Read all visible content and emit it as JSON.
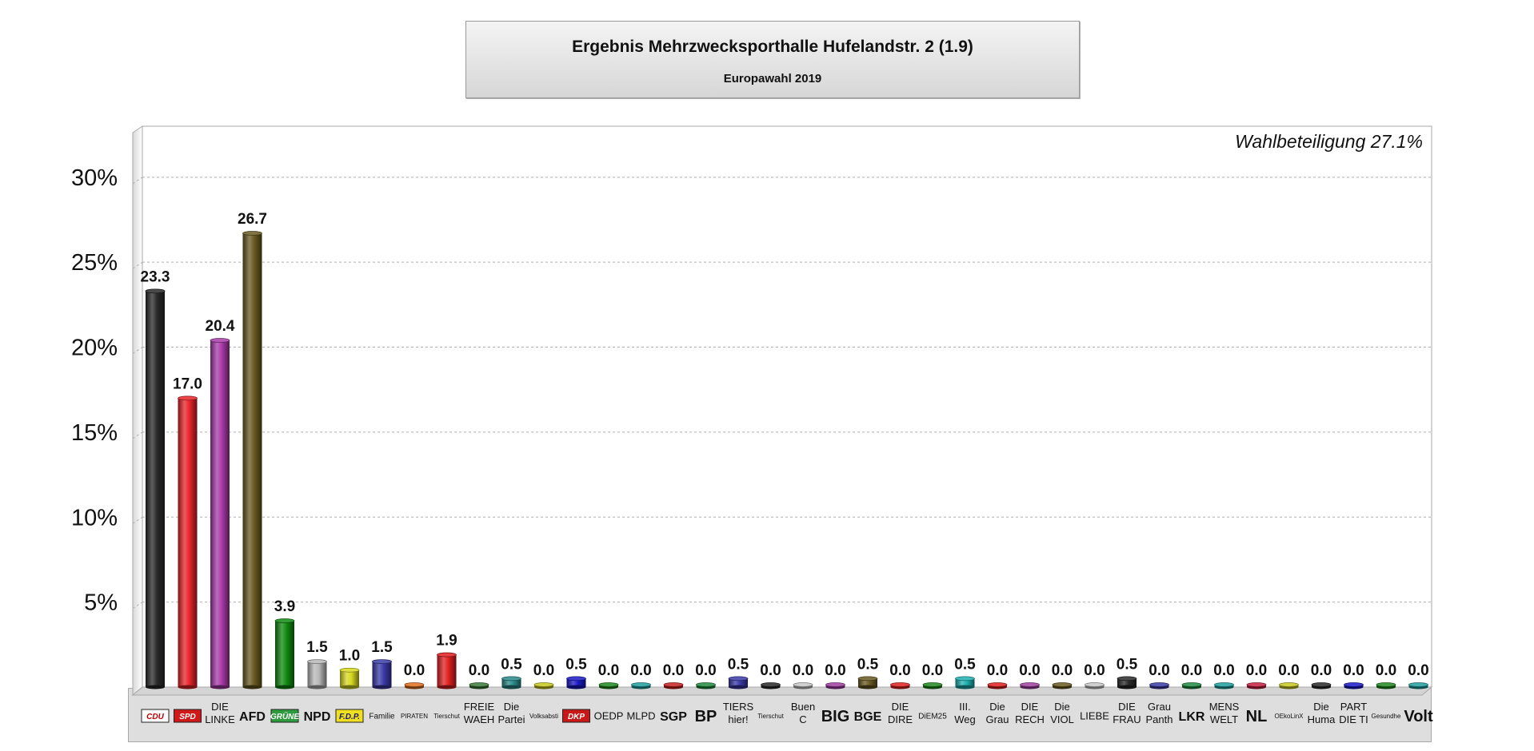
{
  "header": {
    "title": "Ergebnis Mehrzwecksporthalle Hufelandstr. 2 (1.9)",
    "subtitle": "Europawahl 2019"
  },
  "chart_data": {
    "type": "bar",
    "title": "Ergebnis Mehrzwecksporthalle Hufelandstr. 2 (1.9)",
    "subtitle": "Europawahl 2019",
    "annotation": "Wahlbeteiligung 27.1%",
    "ylim": [
      0,
      33
    ],
    "yticks": [
      "5%",
      "10%",
      "15%",
      "20%",
      "25%",
      "30%"
    ],
    "ytick_values": [
      5,
      10,
      15,
      20,
      25,
      30
    ],
    "grid": true,
    "categories": [
      {
        "label": "CDU",
        "value": 23.3,
        "value_label": "23.3",
        "color": "#2a2a2a",
        "style": "logo",
        "logo_bg": "#ffffff",
        "logo_fg": "#c00000"
      },
      {
        "label": "SPD",
        "value": 17.0,
        "value_label": "17.0",
        "color": "#e8242a",
        "style": "logo",
        "logo_bg": "#d01818",
        "logo_fg": "#ffffff"
      },
      {
        "label": "DIE LINKE",
        "value": 20.4,
        "value_label": "20.4",
        "color": "#a83aa8",
        "style": "small"
      },
      {
        "label": "AFD",
        "value": 26.7,
        "value_label": "26.7",
        "color": "#6a5a22",
        "style": "big"
      },
      {
        "label": "GRÜNE",
        "value": 3.9,
        "value_label": "3.9",
        "color": "#108a10",
        "style": "logo",
        "logo_bg": "#2e9a3e",
        "logo_fg": "#ffffff"
      },
      {
        "label": "NPD",
        "value": 1.5,
        "value_label": "1.5",
        "color": "#b8b8b8",
        "style": "big"
      },
      {
        "label": "F.D.P.",
        "value": 1.0,
        "value_label": "1.0",
        "color": "#d8d820",
        "style": "logo",
        "logo_bg": "#f0e020",
        "logo_fg": "#1a1a6a"
      },
      {
        "label": "Familie",
        "value": 1.5,
        "value_label": "1.5",
        "color": "#3a3aa8",
        "style": "tiny"
      },
      {
        "label": "PIRATEN",
        "value": 0.0,
        "value_label": "0.0",
        "color": "#e07020",
        "style": "micro"
      },
      {
        "label": "Tierschut",
        "value": 1.9,
        "value_label": "1.9",
        "color": "#e02020",
        "style": "micro"
      },
      {
        "label": "FREIE WAEH",
        "value": 0.0,
        "value_label": "0.0",
        "color": "#3a7a3a",
        "style": "small"
      },
      {
        "label": "Die Partei",
        "value": 0.5,
        "value_label": "0.5",
        "color": "#2a8a8a",
        "style": "small"
      },
      {
        "label": "Volksabsti",
        "value": 0.0,
        "value_label": "0.0",
        "color": "#c8c820",
        "style": "micro"
      },
      {
        "label": "DKP",
        "value": 0.5,
        "value_label": "0.5",
        "color": "#1a1ac8",
        "style": "logo",
        "logo_bg": "#c81818",
        "logo_fg": "#ffffff"
      },
      {
        "label": "OEDP",
        "value": 0.0,
        "value_label": "0.0",
        "color": "#208a20",
        "style": "small"
      },
      {
        "label": "MLPD",
        "value": 0.0,
        "value_label": "0.0",
        "color": "#20a0a0",
        "style": "small"
      },
      {
        "label": "SGP",
        "value": 0.0,
        "value_label": "0.0",
        "color": "#c82020",
        "style": "big"
      },
      {
        "label": "BP",
        "value": 0.0,
        "value_label": "0.0",
        "color": "#208a40",
        "style": "huge"
      },
      {
        "label": "TIERS hier!",
        "value": 0.5,
        "value_label": "0.5",
        "color": "#3a3aa8",
        "style": "small"
      },
      {
        "label": "Tierschut",
        "value": 0.0,
        "value_label": "0.0",
        "color": "#2a2a2a",
        "style": "micro"
      },
      {
        "label": "Buen C",
        "value": 0.0,
        "value_label": "0.0",
        "color": "#c8c8c8",
        "style": "small"
      },
      {
        "label": "BIG",
        "value": 0.0,
        "value_label": "0.0",
        "color": "#a040a0",
        "style": "huge"
      },
      {
        "label": "BGE",
        "value": 0.5,
        "value_label": "0.5",
        "color": "#6a5a22",
        "style": "big"
      },
      {
        "label": "DIE DIRE",
        "value": 0.0,
        "value_label": "0.0",
        "color": "#e02020",
        "style": "small"
      },
      {
        "label": "DiEM25",
        "value": 0.0,
        "value_label": "0.0",
        "color": "#208a20",
        "style": "tiny"
      },
      {
        "label": "III. Weg",
        "value": 0.5,
        "value_label": "0.5",
        "color": "#20b0b0",
        "style": "small"
      },
      {
        "label": "Die Grau",
        "value": 0.0,
        "value_label": "0.0",
        "color": "#e02020",
        "style": "small"
      },
      {
        "label": "DIE RECH",
        "value": 0.0,
        "value_label": "0.0",
        "color": "#a040a0",
        "style": "small"
      },
      {
        "label": "Die VIOL",
        "value": 0.0,
        "value_label": "0.0",
        "color": "#6a5a22",
        "style": "small"
      },
      {
        "label": "LIEBE",
        "value": 0.0,
        "value_label": "0.0",
        "color": "#c8c8c8",
        "style": "small"
      },
      {
        "label": "DIE FRAU",
        "value": 0.5,
        "value_label": "0.5",
        "color": "#2a2a2a",
        "style": "small"
      },
      {
        "label": "Grau Panth",
        "value": 0.0,
        "value_label": "0.0",
        "color": "#3a3aa8",
        "style": "small"
      },
      {
        "label": "LKR",
        "value": 0.0,
        "value_label": "0.0",
        "color": "#208a40",
        "style": "big"
      },
      {
        "label": "MENS WELT",
        "value": 0.0,
        "value_label": "0.0",
        "color": "#20a0a0",
        "style": "small"
      },
      {
        "label": "NL",
        "value": 0.0,
        "value_label": "0.0",
        "color": "#c82040",
        "style": "huge"
      },
      {
        "label": "OEkoLinX",
        "value": 0.0,
        "value_label": "0.0",
        "color": "#c8c820",
        "style": "micro"
      },
      {
        "label": "Die Huma",
        "value": 0.0,
        "value_label": "0.0",
        "color": "#2a2a2a",
        "style": "small"
      },
      {
        "label": "PART DIE TI",
        "value": 0.0,
        "value_label": "0.0",
        "color": "#1a1ac8",
        "style": "small"
      },
      {
        "label": "Gesundhe",
        "value": 0.0,
        "value_label": "0.0",
        "color": "#208a20",
        "style": "micro"
      },
      {
        "label": "Volt",
        "value": 0.0,
        "value_label": "0.0",
        "color": "#20a0a0",
        "style": "huge"
      }
    ]
  }
}
